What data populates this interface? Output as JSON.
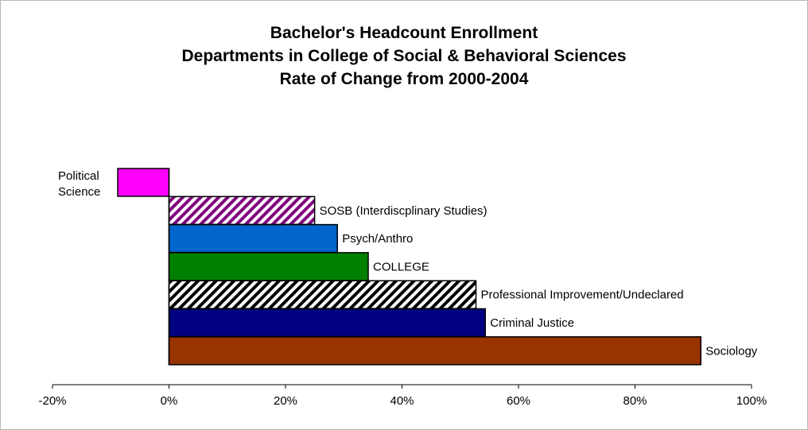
{
  "chart_data": {
    "type": "bar",
    "orientation": "horizontal",
    "title": [
      "Bachelor's Headcount Enrollment",
      "Departments in College of Social & Behavioral Sciences",
      "Rate of Change from 2000-2004"
    ],
    "xlabel": "",
    "ylabel": "",
    "xlim": [
      -20,
      100
    ],
    "x_ticks": [
      -20,
      0,
      20,
      40,
      60,
      80,
      100
    ],
    "x_tick_labels": [
      "-20%",
      "0%",
      "20%",
      "40%",
      "60%",
      "80%",
      "100%"
    ],
    "grid": false,
    "legend": "none",
    "categories": [
      "Political Science",
      "SOSB (Interdiscplinary Studies)",
      "Psych/Anthro",
      "COLLEGE",
      "Professional Improvement/Undeclared",
      "Criminal Justice",
      "Sociology"
    ],
    "category_label_lines": [
      [
        "Political",
        "Science"
      ],
      [
        "SOSB (Interdiscplinary Studies)"
      ],
      [
        "Psych/Anthro"
      ],
      [
        "COLLEGE"
      ],
      [
        "Professional Improvement/Undeclared"
      ],
      [
        "Criminal Justice"
      ],
      [
        "Sociology"
      ]
    ],
    "values": [
      -8.8,
      25,
      28.9,
      34.2,
      52.7,
      54.3,
      91.3
    ],
    "bar_fills": [
      {
        "type": "solid",
        "color": "#ff00ff"
      },
      {
        "type": "hatch",
        "color": "#800080",
        "background": "#ffffff"
      },
      {
        "type": "solid",
        "color": "#0066cc"
      },
      {
        "type": "solid",
        "color": "#008000"
      },
      {
        "type": "hatch",
        "color": "#000000",
        "background": "#ffffff"
      },
      {
        "type": "solid",
        "color": "#000080"
      },
      {
        "type": "solid",
        "color": "#993300"
      }
    ]
  }
}
